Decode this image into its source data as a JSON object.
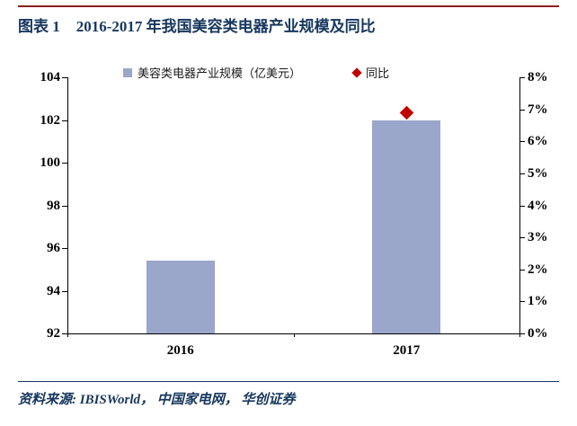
{
  "header": {
    "figure_label": "图表 1",
    "title": "2016-2017 年我国美容类电器产业规模及同比"
  },
  "footer": {
    "source": "资料来源: IBISWorld， 中国家电网， 华创证券"
  },
  "colors": {
    "title_navy": "#17375E",
    "rule_red": "#8B1E1E",
    "bar_fill": "#9AA6CA",
    "marker_red": "#C00000"
  },
  "chart_data": {
    "type": "bar",
    "categories": [
      "2016",
      "2017"
    ],
    "series": [
      {
        "name": "美容类电器产业规模（亿美元）",
        "type": "bar",
        "axis": "left",
        "values": [
          95.4,
          102
        ]
      },
      {
        "name": "同比",
        "type": "scatter",
        "axis": "right",
        "values": [
          null,
          6.9
        ]
      }
    ],
    "left_axis": {
      "min": 92,
      "max": 104,
      "step": 2
    },
    "right_axis": {
      "min": 0,
      "max": 8,
      "step": 1,
      "format": "percent"
    },
    "legend_position": "top",
    "grid": false
  }
}
